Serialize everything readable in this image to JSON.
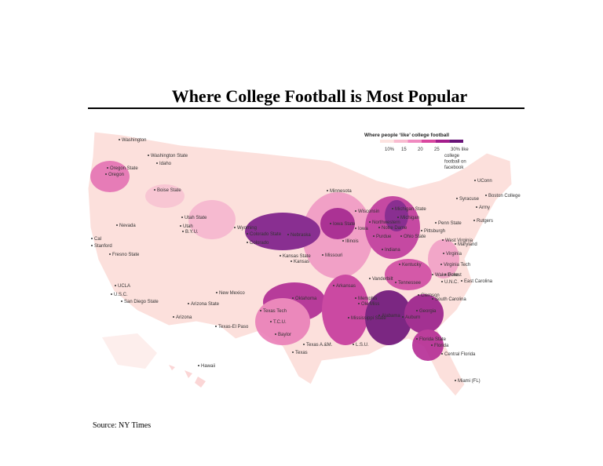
{
  "header": {
    "title": "Where College Football is Most Popular"
  },
  "legend": {
    "title": "Where people ‘like’ college football",
    "labels": [
      "10%",
      "15",
      "20",
      "25",
      "30% like"
    ],
    "note": [
      "college",
      "football on",
      "facebook"
    ],
    "colors": [
      "#fde3e0",
      "#f9bcd0",
      "#f08ac0",
      "#d9479f",
      "#a31d8c",
      "#671377"
    ]
  },
  "places": [
    "Washington",
    "Washington State",
    "Idaho",
    "Oregon State",
    "Oregon",
    "Boise State",
    "Utah State",
    "Nevada",
    "Utah",
    "B.Y.U.",
    "Wyoming",
    "Colorado State",
    "Colorado",
    "Cal",
    "Stanford",
    "Fresno State",
    "UCLA",
    "U.S.C.",
    "San Diego State",
    "Arizona State",
    "Arizona",
    "New Mexico",
    "Texas-El Paso",
    "Texas Tech",
    "T.C.U.",
    "Baylor",
    "Texas A.&M.",
    "Texas",
    "Minnesota",
    "Wisconsin",
    "Iowa State",
    "Nebraska",
    "Northwestern",
    "Illinois",
    "Iowa",
    "Kansas State",
    "Kansas",
    "Missouri",
    "Oklahoma",
    "Arkansas",
    "Memphis",
    "Ole Miss",
    "Mississippi State",
    "L.S.U.",
    "Alabama",
    "Auburn",
    "Georgia",
    "Michigan State",
    "Michigan",
    "Notre Dame",
    "Purdue",
    "Indiana",
    "Ohio State",
    "Penn State",
    "Pittsburgh",
    "West Virginia",
    "Maryland",
    "Virginia",
    "Virginia Tech",
    "Syracuse",
    "UConn",
    "Army",
    "Boston College",
    "Rutgers",
    "Kentucky",
    "Vanderbilt",
    "Wake Forest",
    "Duke",
    "U.N.C.",
    "East Carolina",
    "Clemson",
    "South Carolina",
    "Tennessee",
    "Florida State",
    "Florida",
    "Central Florida",
    "Miami (FL)",
    "Hawaii"
  ],
  "footer": {
    "source": "Source: NY Times"
  }
}
